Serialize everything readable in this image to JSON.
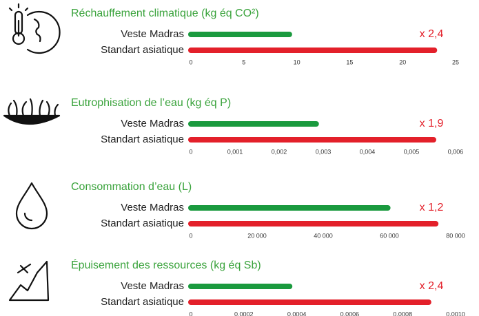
{
  "chart_data": [
    {
      "type": "bar",
      "orientation": "horizontal",
      "title": "Réchauffement climatique (kg éq CO²)",
      "categories": [
        "Veste Madras",
        "Standart asiatique"
      ],
      "values": [
        9.3,
        23.0
      ],
      "colors": [
        "#1a9a3e",
        "#e3202a"
      ],
      "annotation": "x 2,4",
      "xlim": [
        0,
        25
      ],
      "xticks": [
        0,
        5,
        10,
        15,
        20,
        25
      ]
    },
    {
      "type": "bar",
      "orientation": "horizontal",
      "title": "Eutrophisation de l’eau (kg éq P)",
      "categories": [
        "Veste Madras",
        "Standart asiatique"
      ],
      "values": [
        0.00284,
        0.0055
      ],
      "colors": [
        "#1a9a3e",
        "#e3202a"
      ],
      "annotation": "x 1,9",
      "xlim": [
        0,
        0.006
      ],
      "xticks": [
        0,
        {
          "value": 0.001,
          "label": "0,001"
        },
        {
          "value": 0.002,
          "label": "0,002"
        },
        {
          "value": 0.003,
          "label": "0,003"
        },
        {
          "value": 0.004,
          "label": "0,004"
        },
        {
          "value": 0.005,
          "label": "0,005"
        },
        {
          "value": 0.006,
          "label": "0,006"
        }
      ]
    },
    {
      "type": "bar",
      "orientation": "horizontal",
      "title": "Consommation d’eau (L)",
      "categories": [
        "Veste Madras",
        "Standart asiatique"
      ],
      "values": [
        59500,
        74000
      ],
      "colors": [
        "#1a9a3e",
        "#e3202a"
      ],
      "annotation": "x 1,2",
      "xlim": [
        0,
        80000
      ],
      "xticks": [
        0,
        {
          "value": 20000,
          "label": "20 000"
        },
        {
          "value": 40000,
          "label": "40 000"
        },
        {
          "value": 60000,
          "label": "60 000"
        },
        {
          "value": 80000,
          "label": "80 000"
        }
      ]
    },
    {
      "type": "bar",
      "orientation": "horizontal",
      "title": "Épuisement des ressources (kg éq Sb)",
      "categories": [
        "Veste Madras",
        "Standart asiatique"
      ],
      "values": [
        0.000373,
        0.000898
      ],
      "colors": [
        "#1a9a3e",
        "#e3202a"
      ],
      "annotation": "x 2,4",
      "xlim": [
        0,
        0.001
      ],
      "xticks": [
        0,
        {
          "value": 0.0002,
          "label": "0,0002"
        },
        {
          "value": 0.0004,
          "label": "0,0004"
        },
        {
          "value": 0.0006,
          "label": "0,0006"
        },
        {
          "value": 0.0008,
          "label": "0,0008"
        },
        {
          "value": 0.001,
          "label": "0,0010"
        }
      ]
    }
  ]
}
